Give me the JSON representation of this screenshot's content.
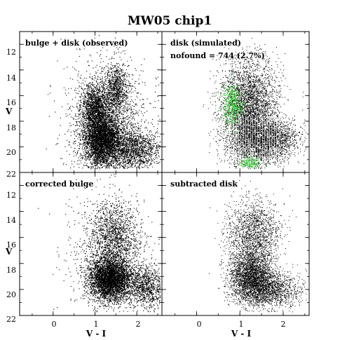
{
  "title": "MW05 chip1",
  "colors": {
    "points": "#000000",
    "not_found": "#33cc33",
    "background": "#ffffff"
  },
  "chart_data": {
    "type": "scatter",
    "title": "MW05 chip1",
    "xlabel": "V - I",
    "ylabel": "V",
    "xlim": [
      -0.8,
      2.6
    ],
    "ylim": [
      22,
      11
    ],
    "x_ticks": [
      "0",
      "1",
      "2"
    ],
    "y_ticks": [
      "12",
      "14",
      "16",
      "18",
      "20",
      "22"
    ],
    "y_inverted": true,
    "panels": [
      {
        "id": "observed",
        "label": "bulge + disk (observed)",
        "series": [
          {
            "kind": "cloud",
            "cx": 1.15,
            "cy": 19.3,
            "sx": 0.22,
            "sy": 1.1,
            "weight": 0.42
          },
          {
            "kind": "cloud",
            "cx": 1.0,
            "cy": 16.8,
            "sx": 0.16,
            "sy": 0.9,
            "weight": 0.14
          },
          {
            "kind": "cloud",
            "cx": 1.5,
            "cy": 15.5,
            "sx": 0.14,
            "sy": 1.0,
            "weight": 0.09
          },
          {
            "kind": "cloud",
            "cx": 1.85,
            "cy": 20.2,
            "sx": 0.35,
            "sy": 0.8,
            "weight": 0.18
          },
          {
            "kind": "cloud",
            "cx": 1.3,
            "cy": 18.0,
            "sx": 0.5,
            "sy": 2.4,
            "weight": 0.17
          }
        ]
      },
      {
        "id": "simulated",
        "label": "disk (simulated)",
        "annotation": "nofound = 744 (2.7%)",
        "series": [
          {
            "kind": "cloud",
            "cx": 1.2,
            "cy": 18.5,
            "sx": 0.3,
            "sy": 1.6,
            "weight": 0.45
          },
          {
            "kind": "cloud",
            "cx": 1.65,
            "cy": 19.4,
            "sx": 0.35,
            "sy": 0.9,
            "weight": 0.3
          },
          {
            "kind": "cloud",
            "cx": 1.2,
            "cy": 15.6,
            "sx": 0.35,
            "sy": 1.4,
            "weight": 0.25
          }
        ],
        "not_found_series": [
          {
            "kind": "cloud",
            "cx": 0.8,
            "cy": 16.8,
            "sx": 0.12,
            "sy": 0.8,
            "weight": 0.7
          },
          {
            "kind": "cloud",
            "cx": 1.2,
            "cy": 21.2,
            "sx": 0.12,
            "sy": 0.25,
            "weight": 0.3
          }
        ]
      },
      {
        "id": "corrected",
        "label": "corrected bulge",
        "series": [
          {
            "kind": "cloud",
            "cx": 1.35,
            "cy": 19.2,
            "sx": 0.25,
            "sy": 0.8,
            "weight": 0.55
          },
          {
            "kind": "cloud",
            "cx": 1.45,
            "cy": 16.0,
            "sx": 0.3,
            "sy": 1.4,
            "weight": 0.2
          },
          {
            "kind": "cloud",
            "cx": 2.2,
            "cy": 19.8,
            "sx": 0.25,
            "sy": 0.8,
            "weight": 0.15
          },
          {
            "kind": "cloud",
            "cx": 1.3,
            "cy": 17.5,
            "sx": 0.5,
            "sy": 2.5,
            "weight": 0.1
          }
        ]
      },
      {
        "id": "subtracted",
        "label": "subtracted disk",
        "series": [
          {
            "kind": "cloud",
            "cx": 1.25,
            "cy": 19.0,
            "sx": 0.25,
            "sy": 1.0,
            "weight": 0.45
          },
          {
            "kind": "cloud",
            "cx": 1.7,
            "cy": 20.0,
            "sx": 0.35,
            "sy": 0.7,
            "weight": 0.25
          },
          {
            "kind": "cloud",
            "cx": 1.3,
            "cy": 15.8,
            "sx": 0.3,
            "sy": 1.4,
            "weight": 0.3
          }
        ]
      }
    ]
  }
}
